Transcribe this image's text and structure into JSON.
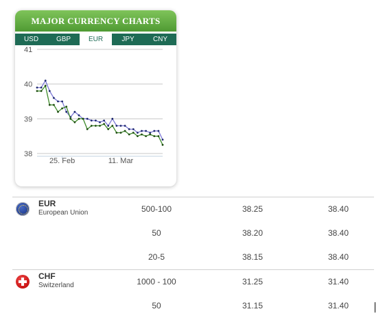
{
  "widget": {
    "title": "MAJOR CURRENCY CHARTS",
    "tabs": [
      "USD",
      "GBP",
      "EUR",
      "JPY",
      "CNY"
    ],
    "active_tab": "EUR"
  },
  "chart_data": {
    "type": "line",
    "ylim": [
      38,
      41
    ],
    "yticks": [
      "38",
      "39",
      "40",
      "41"
    ],
    "xticks": [
      {
        "label": "25. Feb",
        "x": 6
      },
      {
        "label": "11. Mar",
        "x": 20
      }
    ],
    "x": [
      0,
      1,
      2,
      3,
      4,
      5,
      6,
      7,
      8,
      9,
      10,
      11,
      12,
      13,
      14,
      15,
      16,
      17,
      18,
      19,
      20,
      21,
      22,
      23,
      24,
      25,
      26,
      27,
      28,
      29,
      30
    ],
    "series": [
      {
        "color": "#7b78d6",
        "values": [
          39.9,
          39.9,
          40.1,
          39.8,
          39.6,
          39.5,
          39.5,
          39.2,
          39.05,
          39.2,
          39.1,
          39.0,
          39.0,
          38.95,
          38.95,
          38.9,
          38.95,
          38.8,
          39.0,
          38.8,
          38.8,
          38.8,
          38.7,
          38.7,
          38.6,
          38.65,
          38.65,
          38.6,
          38.65,
          38.65,
          38.4
        ]
      },
      {
        "color": "#3e8a2a",
        "values": [
          39.8,
          39.8,
          39.95,
          39.4,
          39.4,
          39.2,
          39.3,
          39.35,
          39.0,
          38.9,
          39.0,
          39.0,
          38.7,
          38.8,
          38.8,
          38.8,
          38.85,
          38.7,
          38.8,
          38.6,
          38.6,
          38.65,
          38.55,
          38.6,
          38.5,
          38.55,
          38.5,
          38.55,
          38.5,
          38.5,
          38.25
        ]
      }
    ]
  },
  "rates": [
    {
      "code": "EUR",
      "name": "European Union",
      "flag": "eu-flag-icon",
      "rows": [
        {
          "range": "500-100",
          "buy": "38.25",
          "sell": "38.40"
        },
        {
          "range": "50",
          "buy": "38.20",
          "sell": "38.40"
        },
        {
          "range": "20-5",
          "buy": "38.15",
          "sell": "38.40"
        }
      ]
    },
    {
      "code": "CHF",
      "name": "Switzerland",
      "flag": "swiss-flag-icon",
      "rows": [
        {
          "range": "1000 - 100",
          "buy": "31.25",
          "sell": "31.40"
        },
        {
          "range": "50",
          "buy": "31.15",
          "sell": "31.40"
        }
      ]
    }
  ]
}
